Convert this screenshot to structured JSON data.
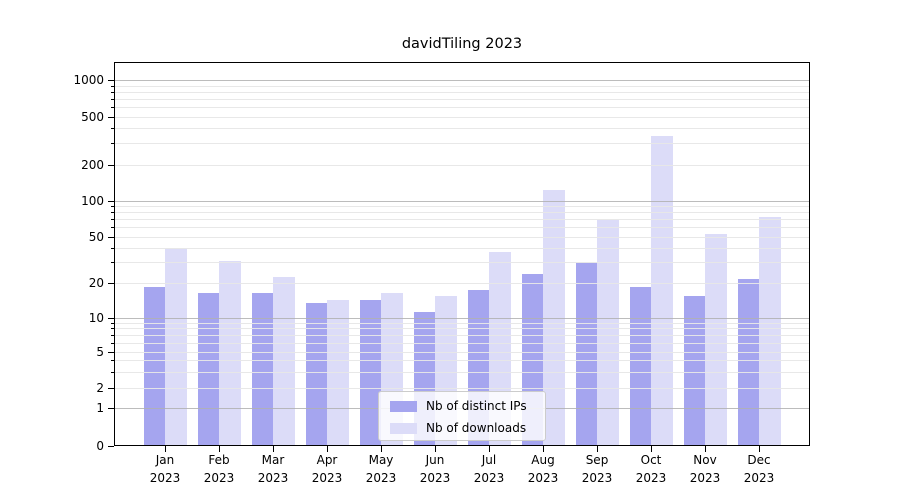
{
  "title": "davidTiling 2023",
  "chart_data": {
    "type": "bar",
    "title": "davidTiling 2023",
    "categories": [
      "Jan 2023",
      "Feb 2023",
      "Mar 2023",
      "Apr 2023",
      "May 2023",
      "Jun 2023",
      "Jul 2023",
      "Aug 2023",
      "Sep 2023",
      "Oct 2023",
      "Nov 2023",
      "Dec 2023"
    ],
    "x_tick_line1": [
      "Jan",
      "Feb",
      "Mar",
      "Apr",
      "May",
      "Jun",
      "Jul",
      "Aug",
      "Sep",
      "Oct",
      "Nov",
      "Dec"
    ],
    "x_tick_line2": "2023",
    "series": [
      {
        "name": "Nb of distinct IPs",
        "color": "#a5a5ef",
        "values": [
          18,
          16,
          16,
          13,
          14,
          11,
          17,
          23,
          29,
          18,
          15,
          21
        ]
      },
      {
        "name": "Nb of downloads",
        "color": "#dcdcf8",
        "values": [
          39,
          30,
          22,
          14,
          16,
          15,
          36,
          120,
          68,
          340,
          51,
          72
        ]
      }
    ],
    "yscale": "symlog",
    "ylim": [
      0,
      1400
    ],
    "yticks": [
      0,
      1,
      2,
      5,
      10,
      20,
      50,
      100,
      200,
      500,
      1000
    ],
    "minor_yticks": [
      3,
      4,
      6,
      7,
      8,
      9,
      30,
      40,
      60,
      70,
      80,
      90,
      300,
      400,
      600,
      700,
      800,
      900
    ],
    "grid": true,
    "grid_position": "above-bars",
    "legend_position": "lower-center",
    "gridline_minor_color": "#e7e7e7",
    "gridline_major_color": "#b0b0b0"
  },
  "legend": {
    "items": [
      {
        "label": "Nb of distinct IPs",
        "color": "#a5a5ef"
      },
      {
        "label": "Nb of downloads",
        "color": "#dcdcf8"
      }
    ]
  }
}
